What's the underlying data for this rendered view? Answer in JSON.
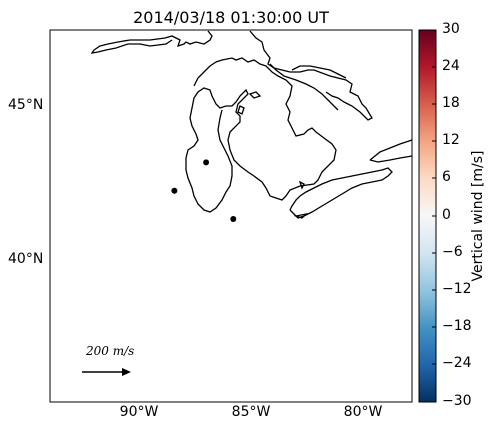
{
  "title": "2014/03/18 01:30:00 UT",
  "latitude_labels": [
    "45°N",
    "40°N"
  ],
  "longitude_labels": [
    "90°W",
    "85°W",
    "80°W"
  ],
  "colorbar": {
    "label": "Vertical wind [m/s]",
    "ticks": [
      "30",
      "24",
      "18",
      "12",
      "6",
      "0",
      "−6",
      "−12",
      "−18",
      "−24",
      "−30"
    ],
    "min": -30,
    "max": 30,
    "colormap": "RdBu_r",
    "colors": [
      "#053061",
      "#2166ac",
      "#4393c3",
      "#92c5de",
      "#d1e5f0",
      "#f7f7f7",
      "#fddbc7",
      "#f4a582",
      "#d6604d",
      "#b2182b",
      "#67001f"
    ]
  },
  "scale_arrow": {
    "label": "200 m/s",
    "value": 200,
    "units": "m/s"
  },
  "stations": [
    {
      "lon": -88.5,
      "lat": 42.1
    },
    {
      "lon": -87.1,
      "lat": 43.05
    },
    {
      "lon": -85.9,
      "lat": 41.15
    }
  ],
  "map_extent": {
    "lon_min": -94.0,
    "lon_max": -78.0,
    "lat_min": 35.0,
    "lat_max": 47.5
  }
}
